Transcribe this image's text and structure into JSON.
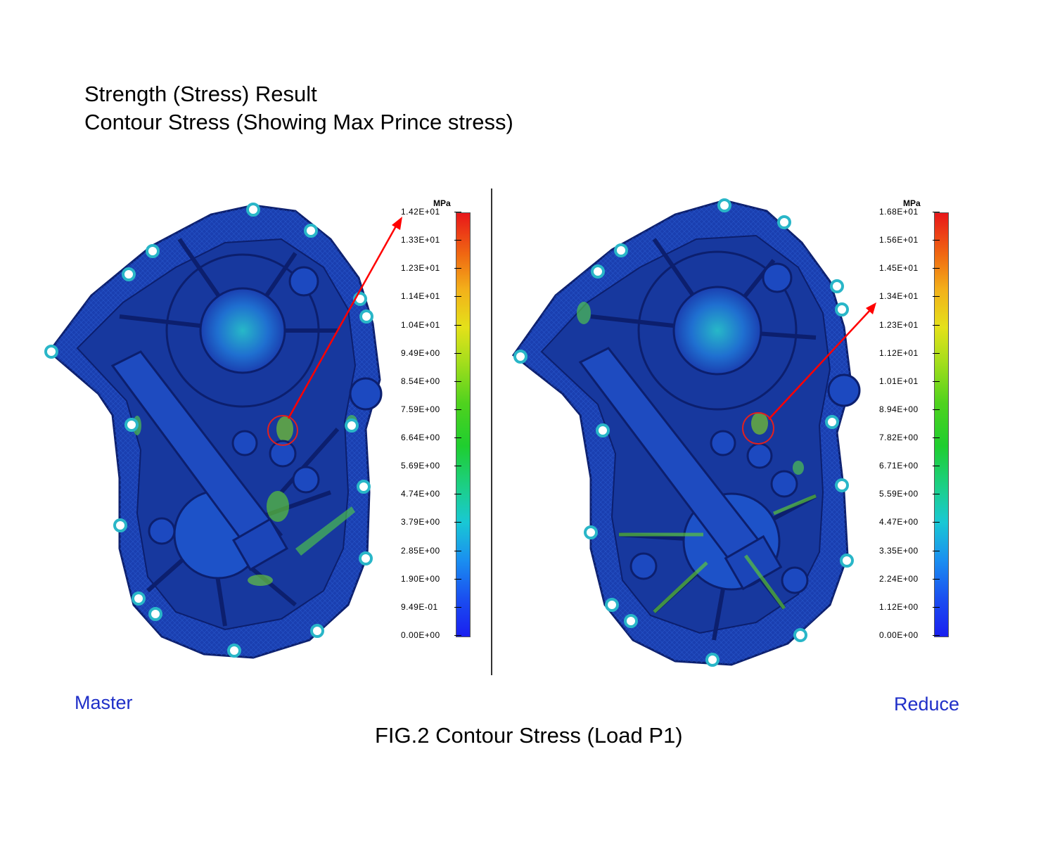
{
  "title": {
    "line1": "Strength (Stress) Result",
    "line2": "Contour Stress (Showing Max Prince stress)"
  },
  "panels": [
    {
      "id": "master",
      "label": "Master",
      "legend": {
        "unit": "MPa",
        "ticks": [
          "1.42E+01",
          "1.33E+01",
          "1.23E+01",
          "1.14E+01",
          "1.04E+01",
          "9.49E+00",
          "8.54E+00",
          "7.59E+00",
          "6.64E+00",
          "5.69E+00",
          "4.74E+00",
          "3.79E+00",
          "2.85E+00",
          "1.90E+00",
          "9.49E-01",
          "0.00E+00"
        ]
      }
    },
    {
      "id": "reduce",
      "label": "Reduce",
      "legend": {
        "unit": "MPa",
        "ticks": [
          "1.68E+01",
          "1.56E+01",
          "1.45E+01",
          "1.34E+01",
          "1.23E+01",
          "1.12E+01",
          "1.01E+01",
          "8.94E+00",
          "7.82E+00",
          "6.71E+00",
          "5.59E+00",
          "4.47E+00",
          "3.35E+00",
          "2.24E+00",
          "1.12E+00",
          "0.00E+00"
        ]
      }
    }
  ],
  "caption": "FIG.2 Contour Stress (Load P1)",
  "colors": {
    "part_blue": "#1a3fb0",
    "part_dark": "#0c1f6e",
    "highlight_circle": "#e02020",
    "arrow": "#ff0000",
    "label_blue": "#1f2fc8"
  }
}
